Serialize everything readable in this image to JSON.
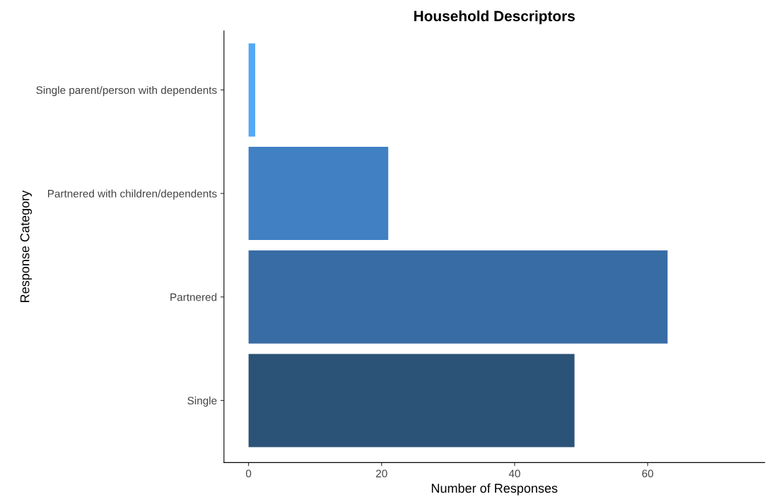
{
  "chart_data": {
    "type": "bar",
    "orientation": "horizontal",
    "title": "Household Descriptors",
    "xlabel": "Number of Responses",
    "ylabel": "Response Category",
    "categories": [
      "Single parent/person with dependents",
      "Partnered with children/dependents",
      "Partnered",
      "Single"
    ],
    "values": [
      1,
      21,
      63,
      49
    ],
    "colors": [
      "#56a8f4",
      "#4080c3",
      "#386ca5",
      "#2b5277"
    ],
    "xlim": [
      -3.7,
      77.6
    ],
    "xticks": [
      0,
      20,
      40,
      60
    ],
    "grid": false,
    "legend": false
  }
}
